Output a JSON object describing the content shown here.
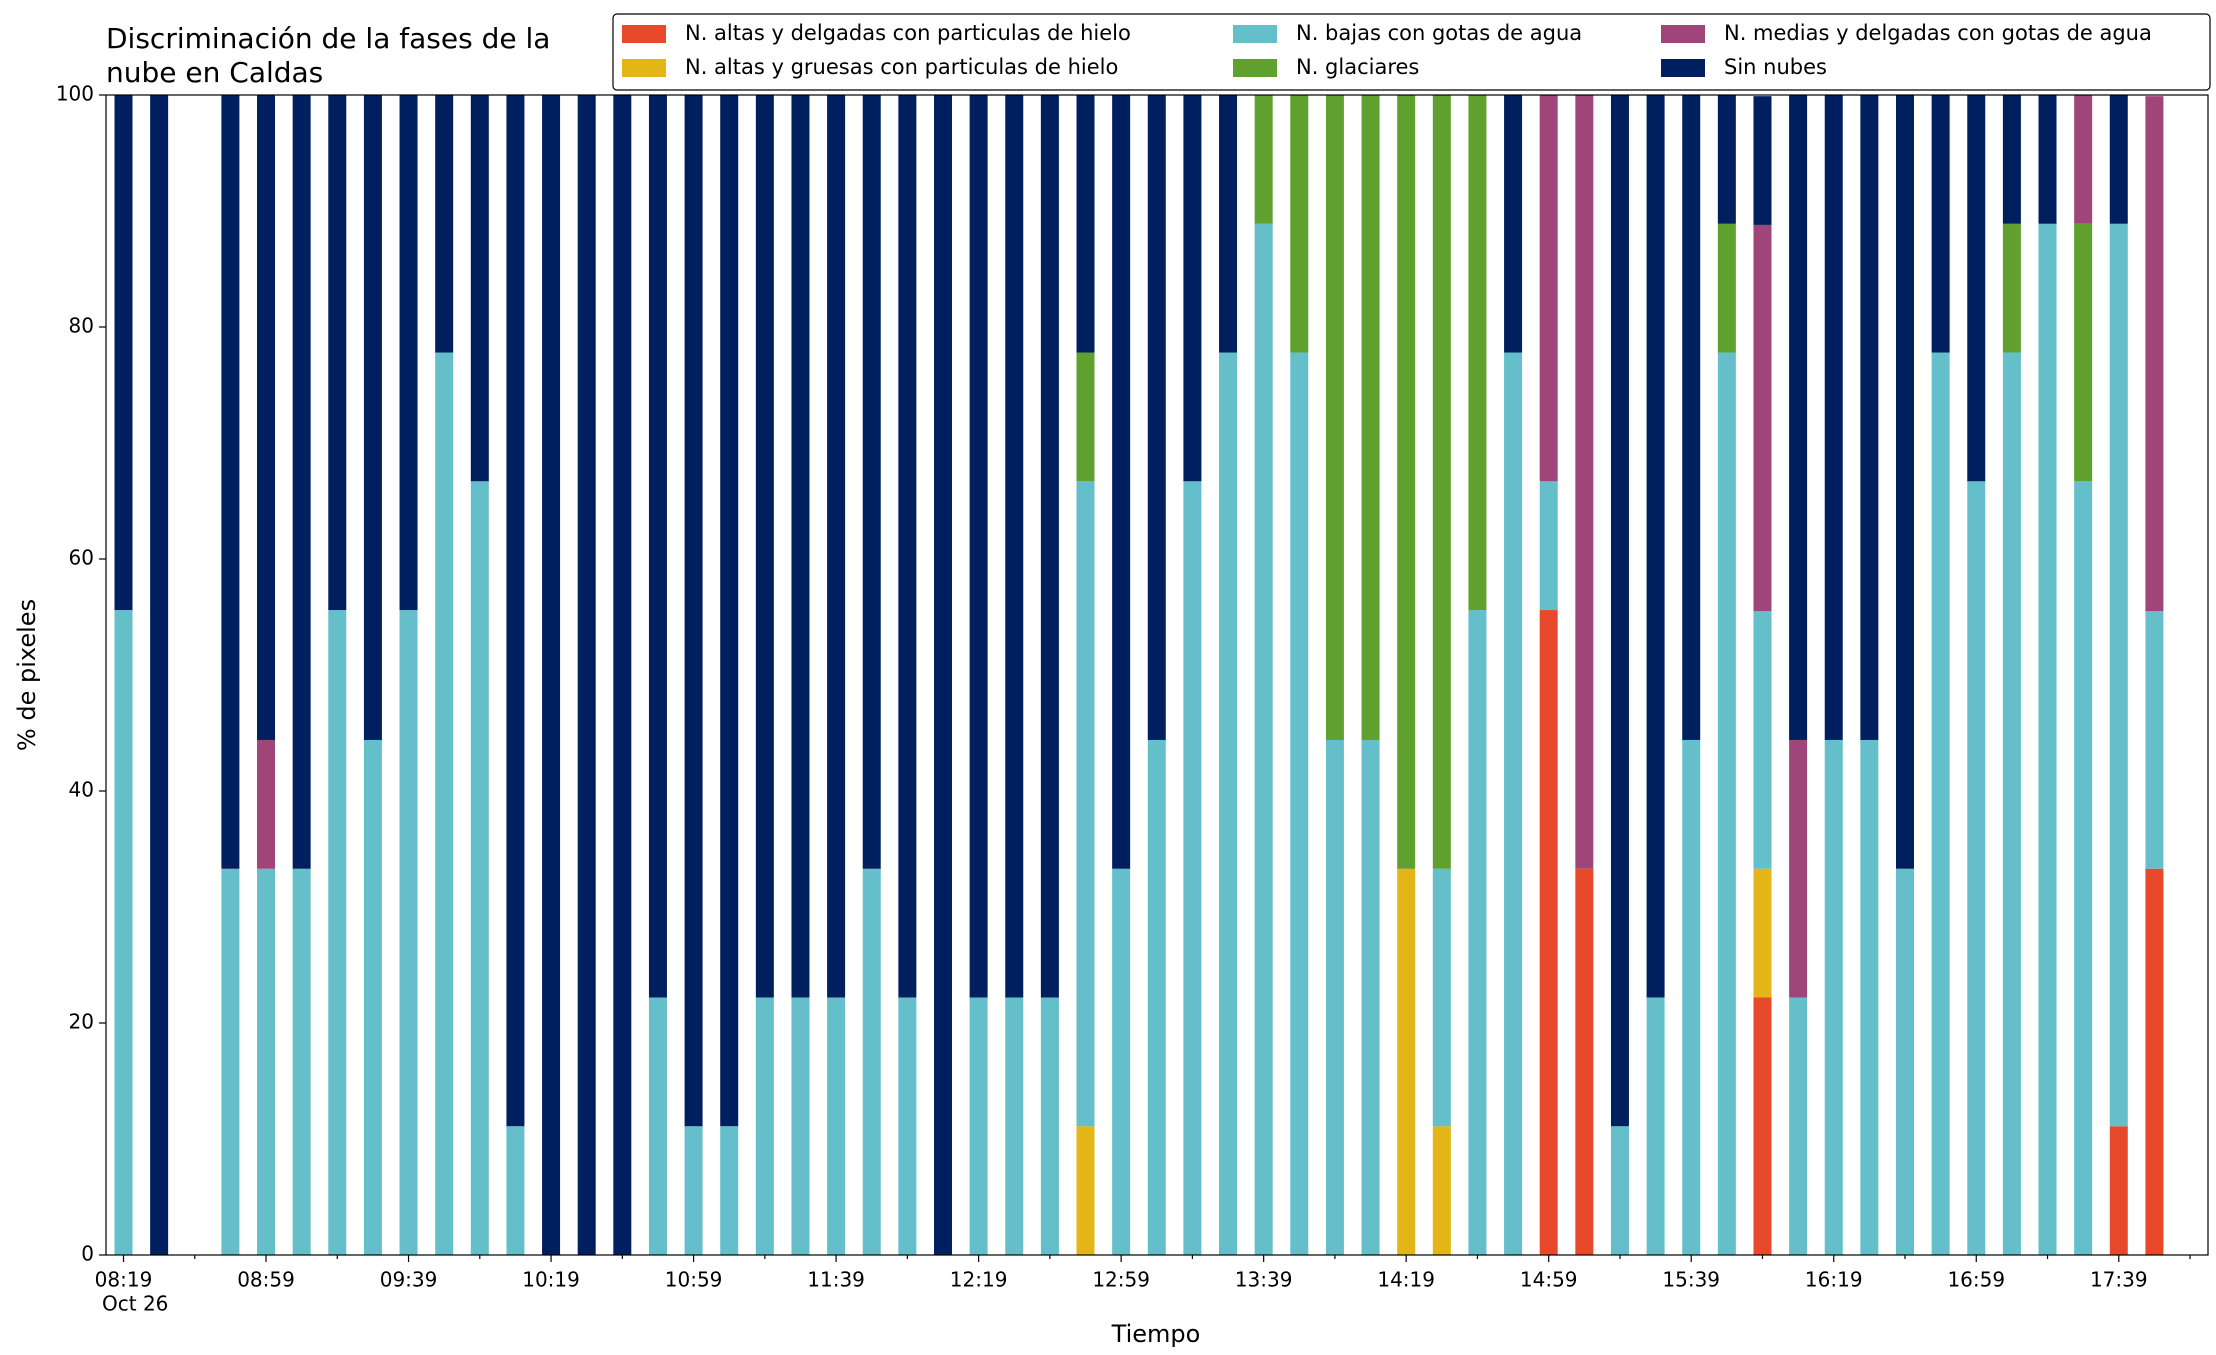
{
  "chart_data": {
    "type": "stacked_bar",
    "title": [
      "Discriminación de la fases de la",
      "nube en Caldas"
    ],
    "xlabel": "Tiempo",
    "ylabel": "% de pixeles",
    "date_label": "Oct 26",
    "categories": [
      "08:19",
      null,
      null,
      null,
      "08:59",
      null,
      null,
      null,
      "09:39",
      null,
      null,
      null,
      "10:19",
      null,
      null,
      null,
      "10:59",
      null,
      null,
      null,
      "11:39",
      null,
      null,
      null,
      "12:19",
      null,
      null,
      null,
      "12:59",
      null,
      null,
      null,
      "13:39",
      null,
      null,
      null,
      "14:19",
      null,
      null,
      null,
      "14:59",
      null,
      null,
      null,
      "15:39",
      null,
      null,
      null,
      "16:19",
      null,
      null,
      null,
      "16:59",
      null,
      null,
      null,
      "17:39",
      null
    ],
    "ylim": [
      0,
      100
    ],
    "yticks": [
      0,
      20,
      40,
      60,
      80,
      100
    ],
    "legend": "top-right",
    "series": [
      {
        "name": "N. altas y delgadas con particulas de hielo",
        "color": "#e8492b",
        "values": [
          0,
          0,
          0,
          0,
          0,
          0,
          0,
          0,
          0,
          0,
          0,
          0,
          0,
          0,
          0,
          0,
          0,
          0,
          0,
          0,
          0,
          0,
          0,
          0,
          0,
          0,
          0,
          0,
          0,
          0,
          0,
          0,
          0,
          0,
          0,
          0,
          0,
          0,
          0,
          0,
          55.6,
          33.3,
          0,
          0,
          0,
          0,
          22.2,
          0,
          0,
          0,
          0,
          0,
          0,
          0,
          0,
          0,
          11.1,
          33.3
        ]
      },
      {
        "name": "N. altas y gruesas con particulas de hielo",
        "color": "#e3b517",
        "values": [
          0,
          0,
          0,
          0,
          0,
          0,
          0,
          0,
          0,
          0,
          0,
          0,
          0,
          0,
          0,
          0,
          0,
          0,
          0,
          0,
          0,
          0,
          0,
          0,
          0,
          0,
          0,
          11.1,
          0,
          0,
          0,
          0,
          0,
          0,
          0,
          0,
          33.3,
          11.1,
          0,
          0,
          0,
          0,
          0,
          0,
          0,
          0,
          11.1,
          0,
          0,
          0,
          0,
          0,
          0,
          0,
          0,
          0,
          0,
          0
        ]
      },
      {
        "name": "N. bajas con gotas de agua",
        "color": "#65bfca",
        "values": [
          55.6,
          0,
          0,
          33.3,
          33.3,
          33.3,
          55.6,
          44.4,
          55.6,
          77.8,
          66.7,
          11.1,
          0,
          0,
          0,
          22.2,
          11.1,
          11.1,
          22.2,
          22.2,
          22.2,
          33.3,
          22.2,
          0,
          22.2,
          22.2,
          22.2,
          55.6,
          33.3,
          44.4,
          66.7,
          77.8,
          88.9,
          77.8,
          44.4,
          44.4,
          0,
          22.2,
          55.6,
          77.8,
          11.1,
          0,
          11.1,
          22.2,
          44.4,
          77.8,
          22.2,
          22.2,
          44.4,
          44.4,
          33.3,
          77.8,
          66.7,
          77.8,
          88.9,
          66.7,
          77.8,
          22.2
        ]
      },
      {
        "name": "N. glaciares",
        "color": "#5fa02f",
        "values": [
          0,
          0,
          0,
          0,
          0,
          0,
          0,
          0,
          0,
          0,
          0,
          0,
          0,
          0,
          0,
          0,
          0,
          0,
          0,
          0,
          0,
          0,
          0,
          0,
          0,
          0,
          0,
          11.1,
          0,
          0,
          0,
          0,
          11.1,
          22.2,
          55.6,
          55.6,
          66.7,
          66.7,
          44.4,
          0,
          0,
          0,
          0,
          0,
          0,
          11.1,
          0,
          0,
          0,
          0,
          0,
          0,
          0,
          11.1,
          0,
          22.2,
          0,
          0
        ]
      },
      {
        "name": "N. medias y delgadas con gotas de agua",
        "color": "#a0457a",
        "values": [
          0,
          0,
          0,
          0,
          11.1,
          0,
          0,
          0,
          0,
          0,
          0,
          0,
          0,
          0,
          0,
          0,
          0,
          0,
          0,
          0,
          0,
          0,
          0,
          0,
          0,
          0,
          0,
          0,
          0,
          0,
          0,
          0,
          0,
          0,
          0,
          0,
          0,
          0,
          0,
          0,
          33.3,
          66.7,
          0,
          0,
          0,
          0,
          33.3,
          22.2,
          0,
          0,
          0,
          0,
          0,
          0,
          0,
          11.1,
          0,
          44.4
        ]
      },
      {
        "name": "Sin nubes",
        "color": "#001f5f",
        "values": [
          44.4,
          100,
          0,
          66.7,
          55.6,
          66.7,
          44.4,
          55.6,
          44.4,
          22.2,
          33.3,
          88.9,
          100,
          100,
          100,
          77.8,
          88.9,
          88.9,
          77.8,
          77.8,
          77.8,
          66.7,
          77.8,
          100,
          77.8,
          77.8,
          77.8,
          22.2,
          66.7,
          55.6,
          33.3,
          22.2,
          0,
          0,
          0,
          0,
          0,
          0,
          0,
          22.2,
          0,
          0,
          88.9,
          77.8,
          55.6,
          11.1,
          11.1,
          55.6,
          55.6,
          55.6,
          66.7,
          22.2,
          33.3,
          11.1,
          11.1,
          0,
          11.1,
          0
        ]
      }
    ]
  }
}
